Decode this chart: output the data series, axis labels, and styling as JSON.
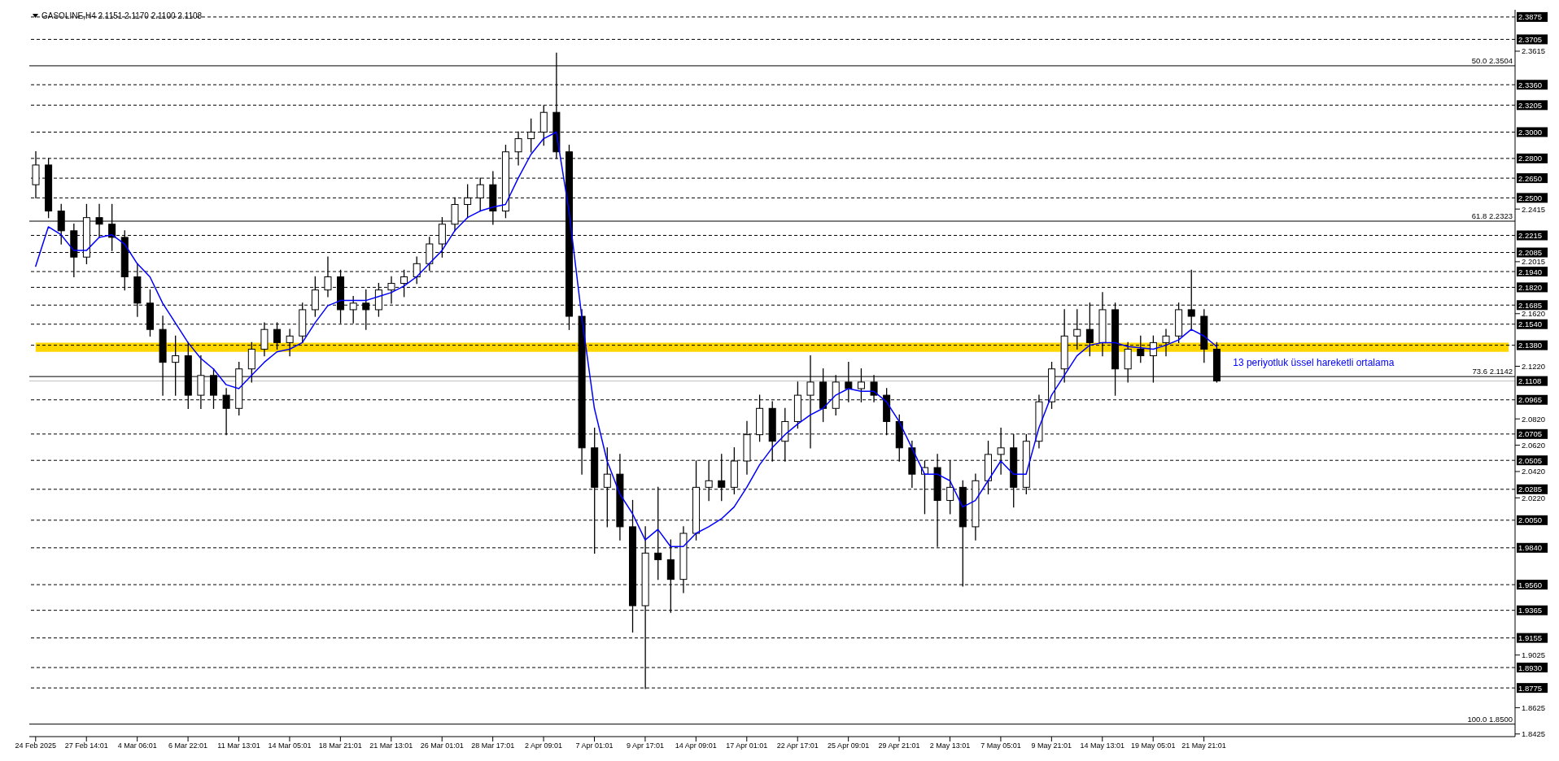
{
  "chart_data": {
    "type": "candlestick",
    "title": "GASOLINE,H4 2.1151 2.1170 2.1100 2.1108",
    "color": "#000000",
    "categories": [
      "24 Feb 2025",
      null,
      null,
      null,
      "27 Feb 14:01",
      null,
      null,
      null,
      "4 Mar 06:01",
      null,
      null,
      null,
      "6 Mar 22:01",
      null,
      null,
      null,
      "11 Mar 13:01",
      null,
      null,
      null,
      "14 Mar 05:01",
      null,
      null,
      null,
      "18 Mar 21:01",
      null,
      null,
      null,
      "21 Mar 13:01",
      null,
      null,
      null,
      "26 Mar 01:01",
      null,
      null,
      null,
      "28 Mar 17:01",
      null,
      null,
      null,
      "2 Apr 09:01",
      null,
      null,
      null,
      "7 Apr 01:01",
      null,
      null,
      null,
      "9 Apr 17:01",
      null,
      null,
      null,
      "14 Apr 09:01",
      null,
      null,
      null,
      "17 Apr 01:01",
      null,
      null,
      null,
      "22 Apr 17:01",
      null,
      null,
      null,
      "25 Apr 09:01",
      null,
      null,
      null,
      "29 Apr 21:01",
      null,
      null,
      null,
      "2 May 13:01",
      null,
      null,
      null,
      "7 May 05:01",
      null,
      null,
      null,
      "9 May 21:01",
      null,
      null,
      null,
      "14 May 13:01",
      null,
      null,
      null,
      "19 May 05:01",
      null,
      null,
      null,
      "21 May 21:01",
      null,
      null,
      null,
      null,
      null,
      null,
      null,
      null,
      null,
      null,
      null,
      null,
      null,
      null,
      null,
      null,
      null,
      null,
      null,
      null,
      null,
      null,
      null,
      null
    ],
    "ohlc": [
      [
        2.26,
        2.285,
        2.25,
        2.275
      ],
      [
        2.275,
        2.28,
        2.235,
        2.24
      ],
      [
        2.24,
        2.245,
        2.215,
        2.225
      ],
      [
        2.225,
        2.23,
        2.19,
        2.205
      ],
      [
        2.205,
        2.245,
        2.2,
        2.235
      ],
      [
        2.235,
        2.245,
        2.22,
        2.23
      ],
      [
        2.23,
        2.245,
        2.21,
        2.22
      ],
      [
        2.22,
        2.225,
        2.18,
        2.19
      ],
      [
        2.19,
        2.2,
        2.16,
        2.17
      ],
      [
        2.17,
        2.18,
        2.145,
        2.15
      ],
      [
        2.15,
        2.16,
        2.1,
        2.125
      ],
      [
        2.125,
        2.145,
        2.1,
        2.13
      ],
      [
        2.13,
        2.14,
        2.09,
        2.1
      ],
      [
        2.1,
        2.13,
        2.09,
        2.115
      ],
      [
        2.115,
        2.12,
        2.09,
        2.1
      ],
      [
        2.1,
        2.105,
        2.07,
        2.09
      ],
      [
        2.09,
        2.125,
        2.085,
        2.12
      ],
      [
        2.12,
        2.14,
        2.11,
        2.135
      ],
      [
        2.135,
        2.155,
        2.13,
        2.15
      ],
      [
        2.15,
        2.155,
        2.135,
        2.14
      ],
      [
        2.14,
        2.15,
        2.13,
        2.145
      ],
      [
        2.145,
        2.17,
        2.14,
        2.165
      ],
      [
        2.165,
        2.19,
        2.16,
        2.18
      ],
      [
        2.18,
        2.205,
        2.175,
        2.19
      ],
      [
        2.19,
        2.195,
        2.155,
        2.165
      ],
      [
        2.165,
        2.175,
        2.155,
        2.17
      ],
      [
        2.17,
        2.18,
        2.15,
        2.165
      ],
      [
        2.165,
        2.185,
        2.16,
        2.18
      ],
      [
        2.18,
        2.19,
        2.17,
        2.185
      ],
      [
        2.185,
        2.195,
        2.175,
        2.19
      ],
      [
        2.19,
        2.205,
        2.185,
        2.2
      ],
      [
        2.2,
        2.22,
        2.195,
        2.215
      ],
      [
        2.215,
        2.235,
        2.205,
        2.23
      ],
      [
        2.23,
        2.25,
        2.225,
        2.245
      ],
      [
        2.245,
        2.26,
        2.235,
        2.25
      ],
      [
        2.25,
        2.265,
        2.24,
        2.26
      ],
      [
        2.26,
        2.27,
        2.23,
        2.24
      ],
      [
        2.24,
        2.29,
        2.235,
        2.285
      ],
      [
        2.285,
        2.3,
        2.275,
        2.295
      ],
      [
        2.295,
        2.31,
        2.285,
        2.3
      ],
      [
        2.3,
        2.32,
        2.29,
        2.315
      ],
      [
        2.315,
        2.36,
        2.28,
        2.285
      ],
      [
        2.285,
        2.29,
        2.15,
        2.16
      ],
      [
        2.16,
        2.165,
        2.04,
        2.06
      ],
      [
        2.06,
        2.075,
        1.98,
        2.03
      ],
      [
        2.03,
        2.06,
        2.0,
        2.04
      ],
      [
        2.04,
        2.055,
        1.99,
        2.0
      ],
      [
        2.0,
        2.02,
        1.92,
        1.94
      ],
      [
        1.94,
        2.0,
        1.877,
        1.98
      ],
      [
        1.98,
        2.03,
        1.96,
        1.975
      ],
      [
        1.975,
        1.99,
        1.935,
        1.96
      ],
      [
        1.96,
        2.0,
        1.95,
        1.995
      ],
      [
        1.995,
        2.05,
        1.99,
        2.03
      ],
      [
        2.03,
        2.05,
        2.02,
        2.035
      ],
      [
        2.035,
        2.055,
        2.02,
        2.03
      ],
      [
        2.03,
        2.06,
        2.025,
        2.05
      ],
      [
        2.05,
        2.08,
        2.04,
        2.07
      ],
      [
        2.07,
        2.1,
        2.065,
        2.09
      ],
      [
        2.09,
        2.095,
        2.05,
        2.065
      ],
      [
        2.065,
        2.09,
        2.05,
        2.08
      ],
      [
        2.08,
        2.11,
        2.075,
        2.1
      ],
      [
        2.1,
        2.13,
        2.06,
        2.11
      ],
      [
        2.11,
        2.12,
        2.08,
        2.09
      ],
      [
        2.09,
        2.115,
        2.085,
        2.11
      ],
      [
        2.11,
        2.125,
        2.095,
        2.105
      ],
      [
        2.105,
        2.12,
        2.095,
        2.11
      ],
      [
        2.11,
        2.115,
        2.095,
        2.1
      ],
      [
        2.1,
        2.105,
        2.07,
        2.08
      ],
      [
        2.08,
        2.085,
        2.05,
        2.06
      ],
      [
        2.06,
        2.065,
        2.03,
        2.04
      ],
      [
        2.04,
        2.05,
        2.01,
        2.045
      ],
      [
        2.045,
        2.055,
        1.985,
        2.02
      ],
      [
        2.02,
        2.05,
        2.01,
        2.03
      ],
      [
        2.03,
        2.035,
        1.955,
        2.0
      ],
      [
        2.0,
        2.04,
        1.99,
        2.035
      ],
      [
        2.035,
        2.065,
        2.025,
        2.055
      ],
      [
        2.055,
        2.075,
        2.04,
        2.06
      ],
      [
        2.06,
        2.07,
        2.015,
        2.03
      ],
      [
        2.03,
        2.07,
        2.025,
        2.065
      ],
      [
        2.065,
        2.1,
        2.06,
        2.095
      ],
      [
        2.095,
        2.125,
        2.09,
        2.12
      ],
      [
        2.12,
        2.165,
        2.11,
        2.145
      ],
      [
        2.145,
        2.165,
        2.135,
        2.15
      ],
      [
        2.15,
        2.17,
        2.13,
        2.14
      ],
      [
        2.14,
        2.178,
        2.13,
        2.165
      ],
      [
        2.165,
        2.17,
        2.1,
        2.12
      ],
      [
        2.12,
        2.14,
        2.11,
        2.135
      ],
      [
        2.135,
        2.145,
        2.125,
        2.13
      ],
      [
        2.13,
        2.145,
        2.11,
        2.14
      ],
      [
        2.14,
        2.15,
        2.13,
        2.145
      ],
      [
        2.145,
        2.17,
        2.14,
        2.165
      ],
      [
        2.165,
        2.195,
        2.15,
        2.16
      ],
      [
        2.16,
        2.165,
        2.125,
        2.135
      ],
      [
        2.135,
        2.14,
        2.11,
        2.1108
      ],
      null,
      null,
      null,
      null,
      null,
      null,
      null,
      null,
      null,
      null,
      null,
      null,
      null,
      null,
      null,
      null,
      null,
      null,
      null,
      null,
      null,
      null,
      null
    ],
    "series": [
      {
        "type": "line",
        "name": "13 periyotluk üssel hareketli ortalama",
        "color": "#0000ff",
        "values": [
          2.198,
          2.228,
          2.222,
          2.21,
          2.21,
          2.22,
          2.222,
          2.215,
          2.2,
          2.19,
          2.17,
          2.155,
          2.14,
          2.128,
          2.12,
          2.108,
          2.105,
          2.115,
          2.125,
          2.133,
          2.135,
          2.14,
          2.155,
          2.168,
          2.172,
          2.172,
          2.172,
          2.175,
          2.178,
          2.183,
          2.19,
          2.2,
          2.21,
          2.225,
          2.235,
          2.24,
          2.243,
          2.245,
          2.265,
          2.283,
          2.295,
          2.3,
          2.24,
          2.16,
          2.09,
          2.05,
          2.025,
          2.01,
          1.99,
          1.998,
          1.985,
          1.985,
          1.995,
          2.0,
          2.006,
          2.015,
          2.03,
          2.047,
          2.06,
          2.07,
          2.078,
          2.085,
          2.09,
          2.1,
          2.105,
          2.103,
          2.103,
          2.095,
          2.08,
          2.06,
          2.04,
          2.04,
          2.035,
          2.015,
          2.02,
          2.035,
          2.05,
          2.04,
          2.04,
          2.075,
          2.1,
          2.115,
          2.13,
          2.138,
          2.14,
          2.14,
          2.137,
          2.136,
          2.135,
          2.138,
          2.142,
          2.15,
          2.145,
          2.137,
          null,
          null,
          null,
          null,
          null,
          null,
          null,
          null,
          null,
          null,
          null,
          null,
          null,
          null,
          null,
          null,
          null,
          null,
          null,
          null,
          null,
          null,
          null
        ]
      }
    ],
    "ylim": [
      1.8405,
      2.393
    ],
    "yticks": [
      2.3615,
      2.2415,
      2.2015,
      {
        "value": 2.162,
        "label": "2.1620"
      },
      {
        "value": 2.122,
        "label": "2.1220"
      },
      {
        "value": 2.082,
        "label": "2.0820"
      },
      {
        "value": 2.062,
        "label": "2.0620"
      },
      {
        "value": 2.042,
        "label": "2.0420"
      },
      {
        "value": 2.022,
        "label": "2.0220"
      },
      1.9025,
      1.8625,
      1.8425
    ],
    "bands": [
      {
        "axis": "y",
        "from": 2.133,
        "to": 2.14,
        "color": "#ffd700"
      }
    ],
    "ref_lines": [
      {
        "axis": "y",
        "value": 2.3875,
        "label": "2.3875",
        "color": "#000000",
        "line_style": "dashed"
      },
      {
        "axis": "y",
        "value": 2.3705,
        "label": "2.3705",
        "color": "#000000",
        "line_style": "dashed"
      },
      {
        "axis": "y",
        "value": 2.3504,
        "label": "50.0 2.3504",
        "color": "#000000",
        "line_style": "solid"
      },
      {
        "axis": "y",
        "value": 2.336,
        "label": "2.3360",
        "color": "#000000",
        "line_style": "dashed"
      },
      {
        "axis": "y",
        "value": 2.3205,
        "label": "2.3205",
        "color": "#000000",
        "line_style": "dashed"
      },
      {
        "axis": "y",
        "value": 2.3,
        "label": "2.3000",
        "color": "#000000",
        "line_style": "dashed"
      },
      {
        "axis": "y",
        "value": 2.28,
        "label": "2.2800",
        "color": "#000000",
        "line_style": "dashed"
      },
      {
        "axis": "y",
        "value": 2.265,
        "label": "2.2650",
        "color": "#000000",
        "line_style": "dashed"
      },
      {
        "axis": "y",
        "value": 2.25,
        "label": "2.2500",
        "color": "#000000",
        "line_style": "dashed"
      },
      {
        "axis": "y",
        "value": 2.2323,
        "label": "61.8 2.2323",
        "color": "#000000",
        "line_style": "solid"
      },
      {
        "axis": "y",
        "value": 2.2215,
        "label": "2.2215",
        "color": "#000000",
        "line_style": "dashed"
      },
      {
        "axis": "y",
        "value": 2.2085,
        "label": "2.2085",
        "color": "#000000",
        "line_style": "dashed"
      },
      {
        "axis": "y",
        "value": 2.194,
        "label": "2.1940",
        "color": "#000000",
        "line_style": "dashed"
      },
      {
        "axis": "y",
        "value": 2.182,
        "label": "2.1820",
        "color": "#000000",
        "line_style": "dashed"
      },
      {
        "axis": "y",
        "value": 2.1685,
        "label": "2.1685",
        "color": "#000000",
        "line_style": "dashed"
      },
      {
        "axis": "y",
        "value": 2.154,
        "label": "2.1540",
        "color": "#000000",
        "line_style": "dashed"
      },
      {
        "axis": "y",
        "value": 2.138,
        "label": "2.1380",
        "color": "#000000",
        "line_style": "dashed"
      },
      {
        "axis": "y",
        "value": 2.1142,
        "label": "73.6 2.1142",
        "color": "#000000",
        "line_style": "solid"
      },
      {
        "axis": "y",
        "value": 2.1108,
        "label": "2.1108",
        "color": "#c0c0c0",
        "line_style": "solid"
      },
      {
        "axis": "y",
        "value": 2.0965,
        "label": "2.0965",
        "color": "#000000",
        "line_style": "dashed"
      },
      {
        "axis": "y",
        "value": 2.0705,
        "label": "2.0705",
        "color": "#000000",
        "line_style": "dashed"
      },
      {
        "axis": "y",
        "value": 2.0505,
        "label": "2.0505",
        "color": "#000000",
        "line_style": "dashed"
      },
      {
        "axis": "y",
        "value": 2.0285,
        "label": "2.0285",
        "color": "#000000",
        "line_style": "dashed"
      },
      {
        "axis": "y",
        "value": 2.005,
        "label": "2.0050",
        "color": "#000000",
        "line_style": "dashed"
      },
      {
        "axis": "y",
        "value": 1.984,
        "label": "1.9840",
        "color": "#000000",
        "line_style": "dashed"
      },
      {
        "axis": "y",
        "value": 1.956,
        "label": "1.9560",
        "color": "#000000",
        "line_style": "dashed"
      },
      {
        "axis": "y",
        "value": 1.9365,
        "label": "1.9365",
        "color": "#000000",
        "line_style": "dashed"
      },
      {
        "axis": "y",
        "value": 1.9155,
        "label": "1.9155",
        "color": "#000000",
        "line_style": "dashed"
      },
      {
        "axis": "y",
        "value": 1.893,
        "label": "1.8930",
        "color": "#000000",
        "line_style": "dashed"
      },
      {
        "axis": "y",
        "value": 1.8775,
        "label": "1.8775",
        "color": "#000000",
        "line_style": "dashed"
      },
      {
        "axis": "y",
        "value": 1.85,
        "label": "100.0 1.8500",
        "color": "#000000",
        "line_style": "solid"
      }
    ]
  }
}
